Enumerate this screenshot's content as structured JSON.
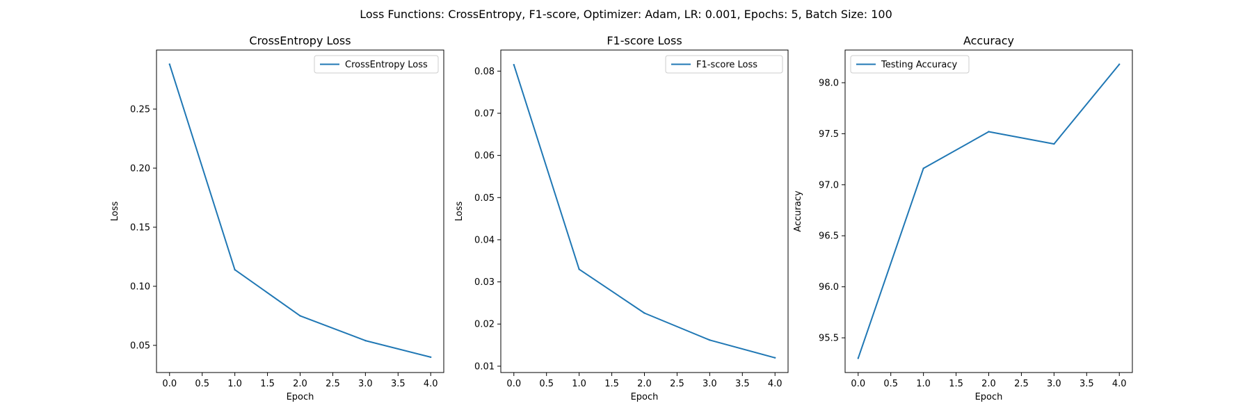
{
  "figure": {
    "suptitle": "Loss Functions: CrossEntropy, F1-score, Optimizer: Adam, LR: 0.001, Epochs: 5, Batch Size: 100"
  },
  "colors": {
    "series": "#1f77b4",
    "axes": "#000000",
    "legend_border": "#cccccc"
  },
  "chart_data": [
    {
      "type": "line",
      "title": "CrossEntropy Loss",
      "xlabel": "Epoch",
      "ylabel": "Loss",
      "xlim": [
        -0.2,
        4.2
      ],
      "ylim": [
        0.027,
        0.3
      ],
      "xticks": [
        "0.0",
        "0.5",
        "1.0",
        "1.5",
        "2.0",
        "2.5",
        "3.0",
        "3.5",
        "4.0"
      ],
      "yticks": [
        "0.05",
        "0.10",
        "0.15",
        "0.20",
        "0.25"
      ],
      "legend": "upper right",
      "grid": false,
      "series": [
        {
          "name": "CrossEntropy Loss",
          "x": [
            0,
            1,
            2,
            3,
            4
          ],
          "y": [
            0.288,
            0.114,
            0.075,
            0.054,
            0.04
          ]
        }
      ]
    },
    {
      "type": "line",
      "title": "F1-score Loss",
      "xlabel": "Epoch",
      "ylabel": "Loss",
      "xlim": [
        -0.2,
        4.2
      ],
      "ylim": [
        0.0085,
        0.085
      ],
      "xticks": [
        "0.0",
        "0.5",
        "1.0",
        "1.5",
        "2.0",
        "2.5",
        "3.0",
        "3.5",
        "4.0"
      ],
      "yticks": [
        "0.01",
        "0.02",
        "0.03",
        "0.04",
        "0.05",
        "0.06",
        "0.07",
        "0.08"
      ],
      "legend": "upper right",
      "grid": false,
      "series": [
        {
          "name": "F1-score Loss",
          "x": [
            0,
            1,
            2,
            3,
            4
          ],
          "y": [
            0.0815,
            0.033,
            0.0226,
            0.0162,
            0.012
          ]
        }
      ]
    },
    {
      "type": "line",
      "title": "Accuracy",
      "xlabel": "Epoch",
      "ylabel": "Accuracy",
      "xlim": [
        -0.2,
        4.2
      ],
      "ylim": [
        95.16,
        98.32
      ],
      "xticks": [
        "0.0",
        "0.5",
        "1.0",
        "1.5",
        "2.0",
        "2.5",
        "3.0",
        "3.5",
        "4.0"
      ],
      "yticks": [
        "95.5",
        "96.0",
        "96.5",
        "97.0",
        "97.5",
        "98.0"
      ],
      "legend": "upper left",
      "grid": false,
      "series": [
        {
          "name": "Testing Accuracy",
          "x": [
            0,
            1,
            2,
            3,
            4
          ],
          "y": [
            95.3,
            97.16,
            97.52,
            97.4,
            98.18
          ]
        }
      ]
    }
  ]
}
